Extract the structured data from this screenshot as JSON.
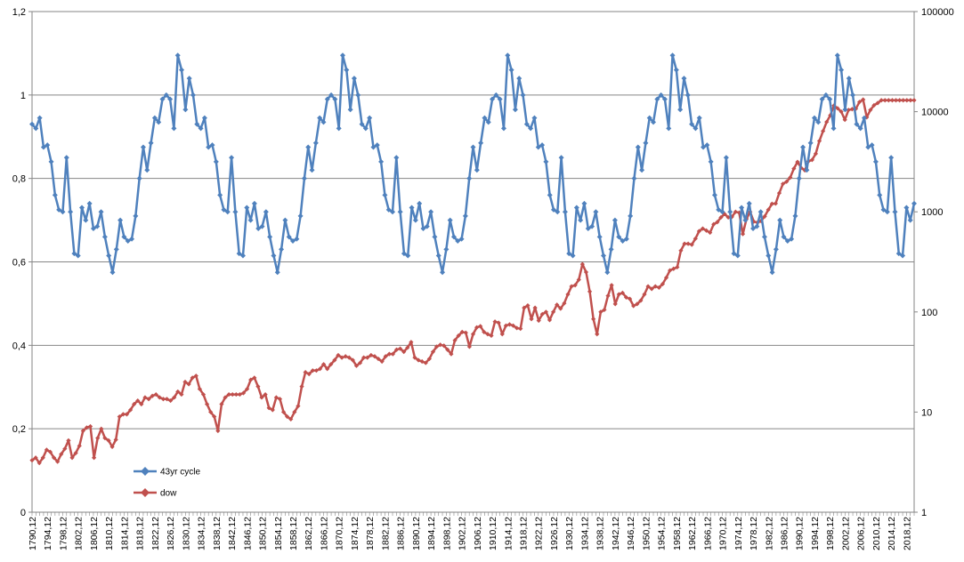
{
  "chart_data": {
    "type": "line",
    "title": "",
    "grid": true,
    "legend_position": "bottom-left",
    "left_axis": {
      "ylim": [
        0,
        1.2
      ],
      "ticks": [
        "0",
        "0,2",
        "0,4",
        "0,6",
        "0,8",
        "1",
        "1,2"
      ]
    },
    "right_axis": {
      "scale": "log",
      "ylim": [
        1,
        100000
      ],
      "ticks": [
        "1",
        "10",
        "100",
        "1000",
        "10000",
        "100000"
      ]
    },
    "x_start_year": 1790,
    "x_end_year": 2020,
    "x_tick_labels": [
      "1790,12",
      "1794,12",
      "1798,12",
      "1802,12",
      "1806,12",
      "1810,12",
      "1814,12",
      "1818,12",
      "1822,12",
      "1826,12",
      "1830,12",
      "1834,12",
      "1838,12",
      "1842,12",
      "1846,12",
      "1850,12",
      "1854,12",
      "1858,12",
      "1862,12",
      "1866,12",
      "1870,12",
      "1874,12",
      "1878,12",
      "1882,12",
      "1886,12",
      "1890,12",
      "1894,12",
      "1898,12",
      "1902,12",
      "1906,12",
      "1910,12",
      "1914,12",
      "1918,12",
      "1922,12",
      "1926,12",
      "1930,12",
      "1934,12",
      "1938,12",
      "1942,12",
      "1946,12",
      "1950,12",
      "1954,12",
      "1958,12",
      "1962,12",
      "1966,12",
      "1970,12",
      "1974,12",
      "1978,12",
      "1982,12",
      "1986,12",
      "1990,12",
      "1994,12",
      "1998,12",
      "2002,12",
      "2006,12",
      "2010,12",
      "2014,12",
      "2018,12"
    ],
    "series": [
      {
        "name": "43yr cycle",
        "axis": "left",
        "color": "#4F81BD",
        "cycle_period_years": 43,
        "cycle_values": [
          0.93,
          0.92,
          0.945,
          0.875,
          0.88,
          0.84,
          0.76,
          0.725,
          0.72,
          0.85,
          0.72,
          0.62,
          0.615,
          0.73,
          0.7,
          0.74,
          0.68,
          0.685,
          0.72,
          0.66,
          0.615,
          0.575,
          0.63,
          0.7,
          0.66,
          0.65,
          0.655,
          0.71,
          0.8,
          0.875,
          0.82,
          0.885,
          0.945,
          0.935,
          0.99,
          1.0,
          0.99,
          0.92,
          1.095,
          1.06,
          0.965,
          1.04,
          1.0
        ]
      },
      {
        "name": "dow",
        "axis": "right",
        "scale": "log",
        "color": "#C0504D",
        "values": [
          3.3,
          3.5,
          3.1,
          3.5,
          4.2,
          4.0,
          3.5,
          3.2,
          3.8,
          4.3,
          5.2,
          3.5,
          3.9,
          4.6,
          6.5,
          7.0,
          7.2,
          3.5,
          5.5,
          6.8,
          5.5,
          5.2,
          4.5,
          5.3,
          9.0,
          9.5,
          9.5,
          10.5,
          12.0,
          13.0,
          12.0,
          14.0,
          13.5,
          14.5,
          15.0,
          14.0,
          13.5,
          13.5,
          13.0,
          14.0,
          16.0,
          15.0,
          20.0,
          19.0,
          22.0,
          23.0,
          17.0,
          15.0,
          12.0,
          10.0,
          9.0,
          6.5,
          12.0,
          14.0,
          15.0,
          15.0,
          15.0,
          15.0,
          15.5,
          17.0,
          21.0,
          22.0,
          18.0,
          14.0,
          15.0,
          11.0,
          10.5,
          14.0,
          13.5,
          10.0,
          9.0,
          8.5,
          10.0,
          11.5,
          18.0,
          25.0,
          24.0,
          26.0,
          26.0,
          27.0,
          30.0,
          27.0,
          30.0,
          33.0,
          37.0,
          35.0,
          36.0,
          35.0,
          33.0,
          29.0,
          31.0,
          35.0,
          35.0,
          37.0,
          36.0,
          34.0,
          32.0,
          36.0,
          38.0,
          38.0,
          42.0,
          43.0,
          40.0,
          44.0,
          50.0,
          35.0,
          33.0,
          32.0,
          31.0,
          34.0,
          40.0,
          45.0,
          47.0,
          46.0,
          42.0,
          38.0,
          52.0,
          58.0,
          63.0,
          62.0,
          45.0,
          60.0,
          70.0,
          72.0,
          63.0,
          60.0,
          58.0,
          80.0,
          78.0,
          60.0,
          73.0,
          75.0,
          73.0,
          69.0,
          68.0,
          110.0,
          116.0,
          85.0,
          110.0,
          82.0,
          95.0,
          100.0,
          83.0,
          100.0,
          118.0,
          108.0,
          122.0,
          150.0,
          180.0,
          185.0,
          210.0,
          300.0,
          250.0,
          160.0,
          85.0,
          60.0,
          100.0,
          105.0,
          145.0,
          185.0,
          120.0,
          150.0,
          155.0,
          140.0,
          135.0,
          115.0,
          120.0,
          130.0,
          150.0,
          180.0,
          170.0,
          180.0,
          175.0,
          190.0,
          220.0,
          260.0,
          270.0,
          280.0,
          410.0,
          480.0,
          480.0,
          470.0,
          540.0,
          640.0,
          680.0,
          650.0,
          620.0,
          750.0,
          790.0,
          880.0,
          950.0,
          880.0,
          890.0,
          1000.0,
          980.0,
          600.0,
          850.0,
          1000.0,
          800.0,
          780.0,
          810.0,
          900.0,
          1050.0,
          1200.0,
          1210.0,
          1540.0,
          1900.0,
          2000.0,
          2200.0,
          2700.0,
          3150.0,
          2750.0,
          2600.0,
          3200.0,
          3300.0,
          3800.0,
          5100.0,
          6400.0,
          7900.0,
          9200.0,
          11500.0,
          10800.0,
          10000.0,
          8300.0,
          10400.0,
          10600.0,
          10700.0,
          12500.0,
          13200.0,
          8800.0,
          10400.0,
          11600.0,
          12200.0,
          13000.0,
          13000.0,
          13000.0,
          13000.0,
          13000.0,
          13000.0,
          13000.0,
          13000.0,
          13000.0,
          13000.0
        ]
      }
    ]
  },
  "legend": {
    "items": [
      {
        "label": "43yr cycle",
        "color": "#4F81BD"
      },
      {
        "label": "dow",
        "color": "#C0504D"
      }
    ]
  },
  "colors": {
    "grid": "#868686",
    "axis": "#868686",
    "blue": "#4F81BD",
    "red": "#C0504D"
  }
}
